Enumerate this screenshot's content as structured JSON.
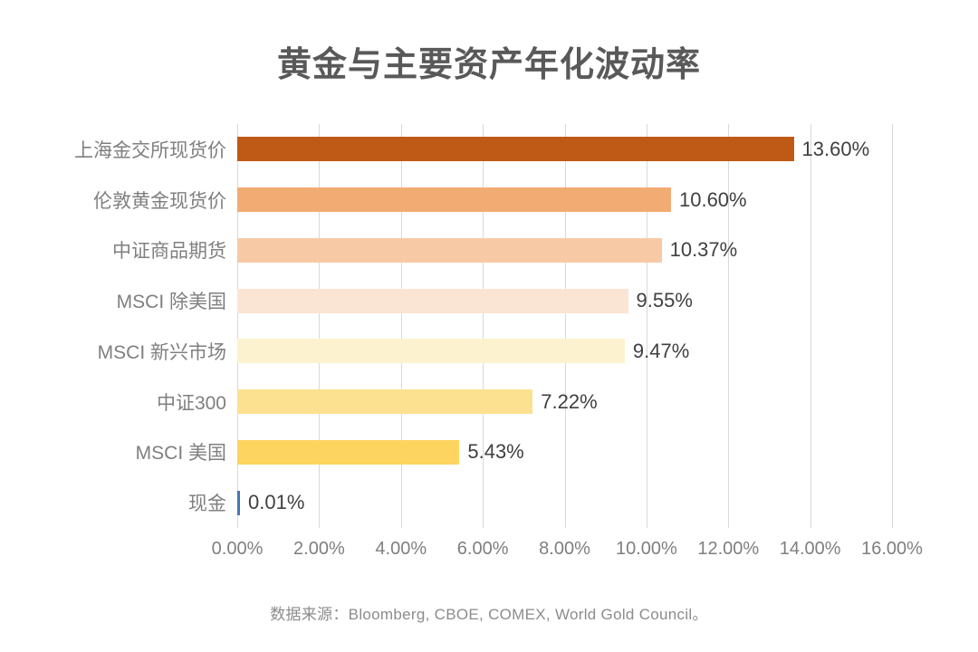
{
  "title": "黄金与主要资产年化波动率",
  "source_note": "数据来源：Bloomberg, CBOE, COMEX, World Gold Council。",
  "colors": {
    "title_text": "#595959",
    "category_text": "#7f7f7f",
    "value_text": "#404040",
    "tick_text": "#7f7f7f",
    "source_text": "#8c8c8c",
    "gridline": "#d9d9d9",
    "background": "#ffffff"
  },
  "chart_data": {
    "type": "bar",
    "orientation": "horizontal",
    "title": "黄金与主要资产年化波动率",
    "categories": [
      "上海金交所现货价",
      "伦敦黄金现货价",
      "中证商品期货",
      "MSCI 除美国",
      "MSCI 新兴市场",
      "中证300",
      "MSCI 美国",
      "现金"
    ],
    "values": [
      13.6,
      10.6,
      10.37,
      9.55,
      9.47,
      7.22,
      5.43,
      0.01
    ],
    "value_labels": [
      "13.60%",
      "10.60%",
      "10.37%",
      "9.55%",
      "9.47%",
      "7.22%",
      "5.43%",
      "0.01%"
    ],
    "bar_colors": [
      "#bf5a16",
      "#f2ab73",
      "#f7caa5",
      "#fae5d4",
      "#fdf2cf",
      "#fbe190",
      "#fcd45f",
      "#4677b0"
    ],
    "xlabel": "",
    "ylabel": "",
    "xlim": [
      0,
      16
    ],
    "x_ticks": [
      "0.00%",
      "2.00%",
      "4.00%",
      "6.00%",
      "8.00%",
      "10.00%",
      "12.00%",
      "14.00%",
      "16.00%"
    ],
    "x_tick_values": [
      0,
      2,
      4,
      6,
      8,
      10,
      12,
      14,
      16
    ],
    "grid": true,
    "legend": false
  }
}
